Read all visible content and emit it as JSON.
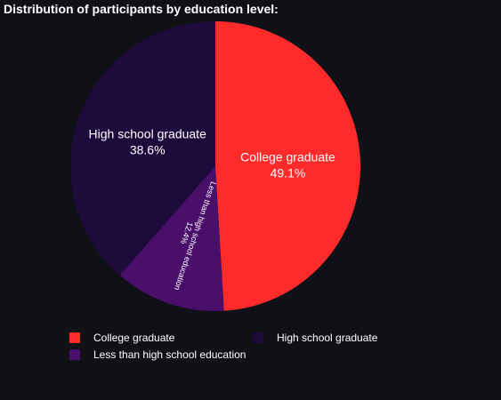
{
  "chart_data": {
    "type": "pie",
    "title": "Distribution of participants by education level:",
    "slices": [
      {
        "label": "College graduate",
        "value": 49.1,
        "percent_label": "49.1%",
        "color": "#ff2b2b"
      },
      {
        "label": "Less than high school education",
        "value": 12.4,
        "percent_label": "12.4%",
        "color": "#4a0e6b"
      },
      {
        "label": "High school graduate",
        "value": 38.6,
        "percent_label": "38.6%",
        "color": "#1d0b3c"
      }
    ],
    "legend": {
      "placement": "bottom",
      "items": [
        "College graduate",
        "High school graduate",
        "Less than high school education"
      ]
    }
  },
  "colors": {
    "background": "#0f1117",
    "text": "#ffffff"
  }
}
